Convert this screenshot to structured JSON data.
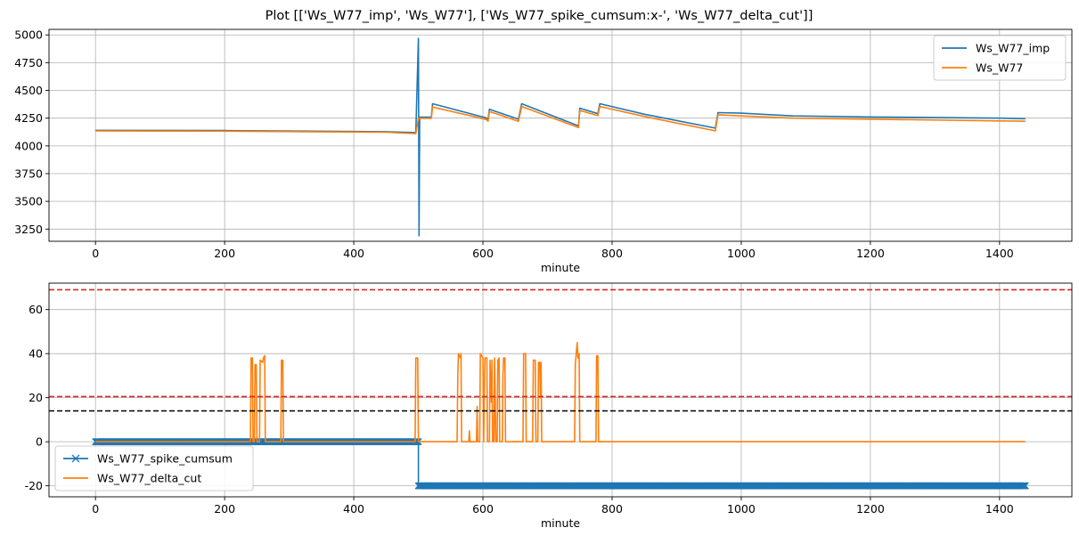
{
  "figure": {
    "title": "Plot [['Ws_W77_imp', 'Ws_W77'], ['Ws_W77_spike_cumsum:x-', 'Ws_W77_delta_cut']]"
  },
  "colors": {
    "blue": "#1f77b4",
    "orange": "#ff7f0e",
    "red": "#d62728",
    "black": "#000000",
    "grid": "#b0b0b0"
  },
  "chart_data": [
    {
      "type": "line",
      "xlabel": "minute",
      "ylabel": "",
      "xlim": [
        -72,
        1512
      ],
      "ylim": [
        3140,
        5050
      ],
      "xticks": [
        0,
        200,
        400,
        600,
        800,
        1000,
        1200,
        1400
      ],
      "yticks": [
        3250,
        3500,
        3750,
        4000,
        4250,
        4500,
        4750,
        5000
      ],
      "grid": true,
      "legend_position": "upper right",
      "series": [
        {
          "name": "Ws_W77_imp",
          "color": "blue",
          "points": [
            [
              0,
              4140
            ],
            [
              200,
              4138
            ],
            [
              448,
              4128
            ],
            [
              496,
              4120
            ],
            [
              500,
              4970
            ],
            [
              501,
              3190
            ],
            [
              502,
              4258
            ],
            [
              520,
              4260
            ],
            [
              522,
              4380
            ],
            [
              605,
              4252
            ],
            [
              608,
              4240
            ],
            [
              610,
              4330
            ],
            [
              655,
              4240
            ],
            [
              660,
              4380
            ],
            [
              748,
              4180
            ],
            [
              750,
              4340
            ],
            [
              778,
              4290
            ],
            [
              781,
              4380
            ],
            [
              850,
              4285
            ],
            [
              960,
              4160
            ],
            [
              964,
              4300
            ],
            [
              1000,
              4295
            ],
            [
              1080,
              4270
            ],
            [
              1205,
              4260
            ],
            [
              1400,
              4250
            ],
            [
              1440,
              4245
            ]
          ]
        },
        {
          "name": "Ws_W77",
          "color": "orange",
          "points": [
            [
              0,
              4135
            ],
            [
              200,
              4133
            ],
            [
              448,
              4123
            ],
            [
              496,
              4110
            ],
            [
              500,
              4248
            ],
            [
              520,
              4248
            ],
            [
              522,
              4350
            ],
            [
              605,
              4238
            ],
            [
              608,
              4222
            ],
            [
              610,
              4310
            ],
            [
              655,
              4222
            ],
            [
              660,
              4355
            ],
            [
              748,
              4165
            ],
            [
              750,
              4320
            ],
            [
              778,
              4272
            ],
            [
              781,
              4355
            ],
            [
              850,
              4265
            ],
            [
              960,
              4135
            ],
            [
              964,
              4280
            ],
            [
              1000,
              4270
            ],
            [
              1080,
              4250
            ],
            [
              1205,
              4240
            ],
            [
              1400,
              4225
            ],
            [
              1440,
              4222
            ]
          ]
        }
      ]
    },
    {
      "type": "line",
      "xlabel": "minute",
      "ylabel": "",
      "xlim": [
        -72,
        1512
      ],
      "ylim": [
        -25,
        72
      ],
      "xticks": [
        0,
        200,
        400,
        600,
        800,
        1000,
        1200,
        1400
      ],
      "yticks": [
        -20,
        0,
        20,
        40,
        60
      ],
      "grid": true,
      "legend_position": "lower left",
      "hlines": [
        {
          "y": 69,
          "color": "red",
          "style": "dashed"
        },
        {
          "y": 20.5,
          "color": "red",
          "style": "dashed"
        },
        {
          "y": 14,
          "color": "black",
          "style": "dashed"
        }
      ],
      "series": [
        {
          "name": "Ws_W77_spike_cumsum",
          "color": "blue",
          "marker": "x",
          "points": [
            [
              0,
              0
            ],
            [
              500,
              0
            ],
            [
              500,
              -20
            ],
            [
              1440,
              -20
            ]
          ]
        },
        {
          "name": "Ws_W77_delta_cut",
          "color": "orange",
          "points": [
            [
              0,
              0
            ],
            [
              240,
              0
            ],
            [
              241,
              38
            ],
            [
              243,
              38
            ],
            [
              244,
              0
            ],
            [
              246,
              0
            ],
            [
              247,
              35
            ],
            [
              249,
              35
            ],
            [
              250,
              0
            ],
            [
              254,
              0
            ],
            [
              255,
              37
            ],
            [
              259,
              36
            ],
            [
              260,
              38
            ],
            [
              262,
              39
            ],
            [
              263,
              0
            ],
            [
              287,
              0
            ],
            [
              288,
              37
            ],
            [
              290,
              37
            ],
            [
              291,
              0
            ],
            [
              495,
              0
            ],
            [
              496,
              38
            ],
            [
              499,
              38
            ],
            [
              500,
              0
            ],
            [
              560,
              0
            ],
            [
              561,
              30
            ],
            [
              562,
              40
            ],
            [
              565,
              38
            ],
            [
              566,
              40
            ],
            [
              567,
              0
            ],
            [
              578,
              0
            ],
            [
              579,
              5
            ],
            [
              580,
              0
            ],
            [
              590,
              0
            ],
            [
              591,
              16
            ],
            [
              592,
              0
            ],
            [
              595,
              0
            ],
            [
              596,
              40
            ],
            [
              598,
              39
            ],
            [
              600,
              38
            ],
            [
              601,
              0
            ],
            [
              603,
              38
            ],
            [
              606,
              38
            ],
            [
              607,
              0
            ],
            [
              610,
              0
            ],
            [
              611,
              37
            ],
            [
              613,
              18
            ],
            [
              614,
              37
            ],
            [
              615,
              0
            ],
            [
              617,
              0
            ],
            [
              618,
              38
            ],
            [
              620,
              0
            ],
            [
              622,
              0
            ],
            [
              623,
              37
            ],
            [
              625,
              38
            ],
            [
              626,
              0
            ],
            [
              630,
              0
            ],
            [
              631,
              30
            ],
            [
              632,
              38
            ],
            [
              634,
              38
            ],
            [
              635,
              0
            ],
            [
              662,
              0
            ],
            [
              663,
              40
            ],
            [
              666,
              40
            ],
            [
              667,
              0
            ],
            [
              677,
              0
            ],
            [
              678,
              37
            ],
            [
              681,
              37
            ],
            [
              682,
              0
            ],
            [
              685,
              0
            ],
            [
              686,
              36
            ],
            [
              688,
              36
            ],
            [
              689,
              20
            ],
            [
              690,
              36
            ],
            [
              691,
              0
            ],
            [
              742,
              0
            ],
            [
              743,
              35
            ],
            [
              745,
              42
            ],
            [
              746,
              45
            ],
            [
              747,
              38
            ],
            [
              749,
              40
            ],
            [
              750,
              0
            ],
            [
              775,
              0
            ],
            [
              776,
              39
            ],
            [
              778,
              39
            ],
            [
              779,
              0
            ],
            [
              1440,
              0
            ]
          ]
        }
      ]
    }
  ]
}
